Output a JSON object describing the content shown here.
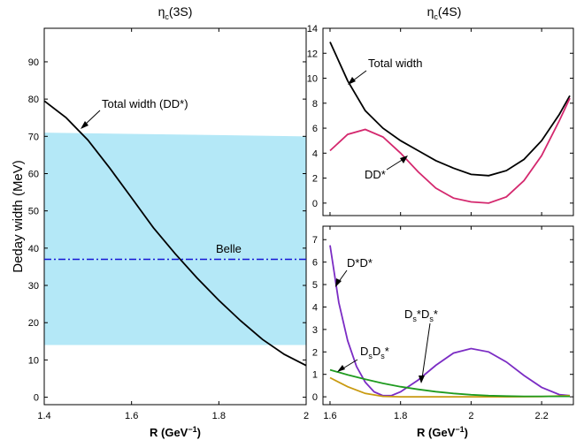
{
  "chart_data": [
    {
      "type": "line",
      "title": "η",
      "title_sub": "c",
      "title_tail": "(3S)",
      "xlabel": "R (GeV",
      "xlabel_sup": "−1",
      "xlabel_tail": ")",
      "ylabel": "Deday width (MeV)",
      "xlim": [
        1.4,
        2.0
      ],
      "ylim": [
        -2,
        99
      ],
      "xticks": [
        1.4,
        1.6,
        1.8,
        2.0
      ],
      "xticklabels": [
        "1.4",
        "1.6",
        "1.8",
        "2"
      ],
      "yticks": [
        0,
        10,
        20,
        30,
        40,
        50,
        60,
        70,
        80,
        90
      ],
      "yticklabels": [
        "0",
        "10",
        "20",
        "30",
        "40",
        "50",
        "60",
        "70",
        "80",
        "90"
      ],
      "band": {
        "x": [
          1.4,
          2.0
        ],
        "lower": [
          14,
          14
        ],
        "upper": [
          71,
          70
        ],
        "color": "#b4e8f7"
      },
      "series": [
        {
          "key": "total",
          "color": "#000000",
          "style": "solid",
          "x": [
            1.4,
            1.45,
            1.5,
            1.55,
            1.6,
            1.65,
            1.7,
            1.75,
            1.8,
            1.85,
            1.9,
            1.95,
            2.0
          ],
          "y": [
            79.5,
            75,
            69,
            61.5,
            53.5,
            45.5,
            38.5,
            32,
            26,
            20.5,
            15.5,
            11.5,
            8.5
          ]
        },
        {
          "key": "belle",
          "color": "#1515d6",
          "style": "dashdot",
          "x": [
            1.4,
            2.0
          ],
          "y": [
            37,
            37
          ]
        }
      ],
      "annotations": [
        {
          "text": "Total width (DD*)",
          "x": 1.57,
          "y": 77
        },
        {
          "text": "Belle",
          "x": 1.78,
          "y": 40
        }
      ]
    },
    {
      "type": "line",
      "title": "η",
      "title_sub": "c",
      "title_tail": "(4S)",
      "xlim": [
        1.58,
        2.29
      ],
      "ylim": [
        -1,
        14
      ],
      "yticks": [
        0,
        2,
        4,
        6,
        8,
        10,
        12,
        14
      ],
      "yticklabels": [
        "0",
        "2",
        "4",
        "6",
        "8",
        "10",
        "12",
        "14"
      ],
      "series": [
        {
          "key": "total",
          "color": "#000000",
          "x": [
            1.6,
            1.65,
            1.7,
            1.75,
            1.8,
            1.85,
            1.9,
            1.95,
            2.0,
            2.05,
            2.1,
            2.15,
            2.2,
            2.25,
            2.28
          ],
          "y": [
            12.9,
            9.8,
            7.4,
            6.0,
            5.0,
            4.2,
            3.4,
            2.8,
            2.3,
            2.2,
            2.6,
            3.5,
            5.0,
            7.1,
            8.6
          ]
        },
        {
          "key": "ddstar",
          "color": "#d4286e",
          "x": [
            1.6,
            1.65,
            1.7,
            1.75,
            1.8,
            1.85,
            1.9,
            1.95,
            2.0,
            2.05,
            2.1,
            2.15,
            2.2,
            2.25,
            2.28
          ],
          "y": [
            4.2,
            5.5,
            5.9,
            5.3,
            4.0,
            2.5,
            1.2,
            0.4,
            0.1,
            0.0,
            0.5,
            1.8,
            3.8,
            6.6,
            8.4
          ]
        }
      ],
      "annotations": [
        {
          "text": "Total width",
          "x": 1.8,
          "y": 10.3
        },
        {
          "text": "DD*",
          "x": 1.8,
          "y": 1.6
        }
      ]
    },
    {
      "type": "line",
      "xlabel": "R (GeV",
      "xlabel_sup": "−1",
      "xlabel_tail": ")",
      "xlim": [
        1.58,
        2.29
      ],
      "ylim": [
        -0.35,
        7.6
      ],
      "xticks": [
        1.6,
        1.8,
        2.0,
        2.2
      ],
      "xticklabels": [
        "1.6",
        "1.8",
        "2",
        "2.2"
      ],
      "yticks": [
        0,
        1,
        2,
        3,
        4,
        5,
        6,
        7
      ],
      "yticklabels": [
        "0",
        "1",
        "2",
        "3",
        "4",
        "5",
        "6",
        "7"
      ],
      "series": [
        {
          "key": "dstardstar",
          "color": "#7b2cc4",
          "x": [
            1.6,
            1.625,
            1.65,
            1.675,
            1.7,
            1.725,
            1.75,
            1.775,
            1.8,
            1.85,
            1.9,
            1.95,
            2.0,
            2.05,
            2.1,
            2.15,
            2.2,
            2.25,
            2.28
          ],
          "y": [
            6.75,
            4.2,
            2.5,
            1.35,
            0.65,
            0.22,
            0.05,
            0.06,
            0.22,
            0.75,
            1.4,
            1.95,
            2.15,
            2.0,
            1.55,
            0.95,
            0.42,
            0.1,
            0.05
          ]
        },
        {
          "key": "dsdsstar",
          "color": "#c99a10",
          "x": [
            1.6,
            1.65,
            1.7,
            1.75,
            1.8,
            1.9,
            2.0,
            2.1,
            2.2,
            2.28
          ],
          "y": [
            0.85,
            0.45,
            0.15,
            0.02,
            0.0,
            0.0,
            0.0,
            0.0,
            0.01,
            0.05
          ]
        },
        {
          "key": "dsstardsstar",
          "color": "#1f9b1f",
          "x": [
            1.6,
            1.65,
            1.7,
            1.75,
            1.8,
            1.85,
            1.9,
            1.95,
            2.0,
            2.05,
            2.1,
            2.15,
            2.2,
            2.28
          ],
          "y": [
            1.2,
            0.98,
            0.78,
            0.6,
            0.45,
            0.33,
            0.23,
            0.15,
            0.09,
            0.05,
            0.03,
            0.02,
            0.02,
            0.02
          ]
        }
      ],
      "annotations": [
        {
          "text": "D*D*",
          "x": 1.64,
          "y": 5.6
        },
        {
          "text": "D",
          "sub1": "s",
          "mid": "D",
          "sub2": "s",
          "tail": "*",
          "x": 1.73,
          "y": 1.2
        },
        {
          "text": "D",
          "sub1": "s",
          "mid": "*D",
          "sub2": "s",
          "tail": "*",
          "x": 1.98,
          "y": 2.6
        }
      ]
    }
  ]
}
